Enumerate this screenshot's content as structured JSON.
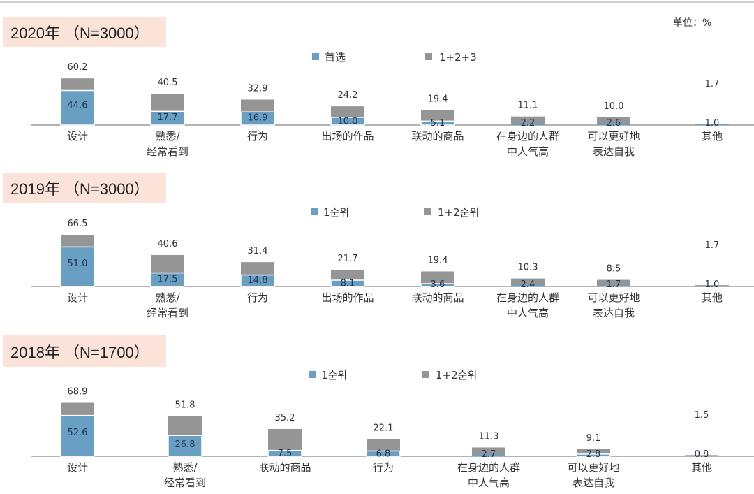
{
  "unit_label": "单位：%",
  "colors": {
    "first": "#6a9fc4",
    "total": "#959595",
    "header_bg": "#fbe3d9"
  },
  "chart_data": [
    {
      "type": "bar",
      "stacked_overlay": true,
      "title": "2020年 （N=3000）",
      "legend": [
        "首选",
        "1+2+3"
      ],
      "categories": [
        "设计",
        "熟悉/\n经常看到",
        "行为",
        "出场的作品",
        "联动的商品",
        "在身边的人群\n中人气高",
        "可以更好地\n表达自我",
        "其他"
      ],
      "series": [
        {
          "name": "首选",
          "values": [
            44.6,
            17.7,
            16.9,
            10.0,
            5.1,
            2.2,
            2.6,
            1.0
          ]
        },
        {
          "name": "1+2+3",
          "values": [
            60.2,
            40.5,
            32.9,
            24.2,
            19.4,
            11.1,
            10.0,
            1.7
          ]
        }
      ]
    },
    {
      "type": "bar",
      "stacked_overlay": true,
      "title": "2019年 （N=3000）",
      "legend": [
        "1순위",
        "1+2순위"
      ],
      "categories": [
        "设计",
        "熟悉/\n经常看到",
        "行为",
        "出场的作品",
        "联动的商品",
        "在身边的人群\n中人气高",
        "可以更好地\n表达自我",
        "其他"
      ],
      "series": [
        {
          "name": "1순위",
          "values": [
            51.0,
            17.5,
            14.8,
            8.1,
            3.6,
            2.4,
            1.7,
            1.0
          ]
        },
        {
          "name": "1+2순위",
          "values": [
            66.5,
            40.6,
            31.4,
            21.7,
            19.4,
            10.3,
            8.5,
            1.7
          ]
        }
      ]
    },
    {
      "type": "bar",
      "stacked_overlay": true,
      "title": "2018年 （N=1700）",
      "legend": [
        "1순위",
        "1+2순위"
      ],
      "categories": [
        "设计",
        "熟悉/\n经常看到",
        "联动的商品",
        "行为",
        "在身边的人群\n中人气高",
        "可以更好地\n表达自我",
        "其他"
      ],
      "series": [
        {
          "name": "1순위",
          "values": [
            52.6,
            26.8,
            7.5,
            6.8,
            2.7,
            2.8,
            0.8
          ]
        },
        {
          "name": "1+2순위",
          "values": [
            68.9,
            51.8,
            35.2,
            22.1,
            11.3,
            9.1,
            1.5
          ]
        }
      ]
    }
  ]
}
